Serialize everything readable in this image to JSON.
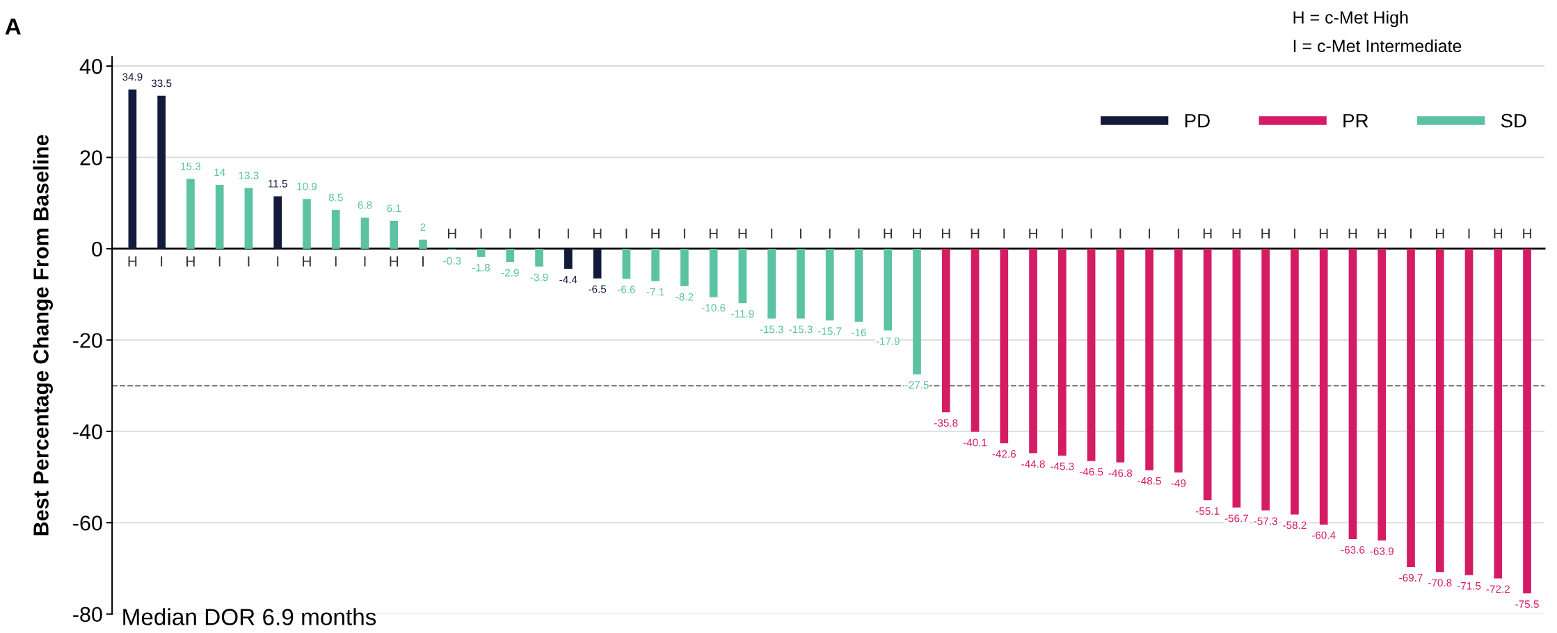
{
  "chart_data": {
    "type": "bar",
    "ylabel": "Best Percentage Change From Baseline",
    "categories": [
      "H",
      "I",
      "H",
      "I",
      "I",
      "I",
      "H",
      "I",
      "I",
      "H",
      "I",
      "H",
      "I",
      "I",
      "I",
      "I",
      "H",
      "I",
      "H",
      "I",
      "H",
      "H",
      "I",
      "I",
      "I",
      "I",
      "H",
      "H",
      "H",
      "H",
      "I",
      "H",
      "I",
      "I",
      "I",
      "I",
      "I",
      "H",
      "H",
      "H",
      "I",
      "H",
      "H",
      "H",
      "I",
      "H",
      "I",
      "H",
      "H"
    ],
    "series": [
      {
        "name": "PD",
        "color": "#141a3a",
        "values": [
          34.9,
          33.5,
          null,
          null,
          null,
          11.5,
          null,
          null,
          null,
          null,
          null,
          null,
          null,
          null,
          null,
          -4.4,
          -6.5,
          null,
          null,
          null,
          null,
          null,
          null,
          null,
          null,
          null,
          null,
          null,
          null,
          null,
          null,
          null,
          null,
          null,
          null,
          null,
          null,
          null,
          null,
          null,
          null,
          null,
          null,
          null,
          null,
          null,
          null,
          null,
          null
        ]
      },
      {
        "name": "PR",
        "color": "#d41c64",
        "values": [
          null,
          null,
          null,
          null,
          null,
          null,
          null,
          null,
          null,
          null,
          null,
          null,
          null,
          null,
          null,
          null,
          null,
          null,
          null,
          null,
          null,
          null,
          null,
          null,
          null,
          null,
          null,
          null,
          -35.8,
          -40.1,
          -42.6,
          -44.8,
          -45.3,
          -46.5,
          -46.8,
          -48.5,
          -49,
          -55.1,
          -56.7,
          -57.3,
          -58.2,
          -60.4,
          -63.6,
          -63.9,
          -69.7,
          -70.8,
          -71.5,
          -72.2,
          -75.5
        ]
      },
      {
        "name": "SD",
        "color": "#5bc2a2",
        "values": [
          null,
          null,
          15.3,
          14,
          13.3,
          null,
          10.9,
          8.5,
          6.8,
          6.1,
          2,
          -0.3,
          -1.8,
          -2.9,
          -3.9,
          null,
          null,
          -6.6,
          -7.1,
          -8.2,
          -10.6,
          -11.9,
          -15.3,
          -15.3,
          -15.7,
          -16,
          -17.9,
          -27.5,
          null,
          null,
          null,
          null,
          null,
          null,
          null,
          null,
          null,
          null,
          null,
          null,
          null,
          null,
          null,
          null,
          null,
          null,
          null,
          null,
          null
        ]
      }
    ],
    "ylim": [
      -80,
      42
    ],
    "yticks": [
      -80,
      -60,
      -40,
      -20,
      0,
      20,
      40
    ],
    "grid": "y",
    "legend": "top right",
    "data_labels": true,
    "ref_lines": [
      {
        "axis": "y",
        "value": -30,
        "color": "#808080",
        "line_style": "dashed"
      }
    ],
    "annotations": [
      "A",
      "H = c-Met High",
      "I = c-Met Intermediate",
      "Median DOR 6.9 months"
    ]
  }
}
